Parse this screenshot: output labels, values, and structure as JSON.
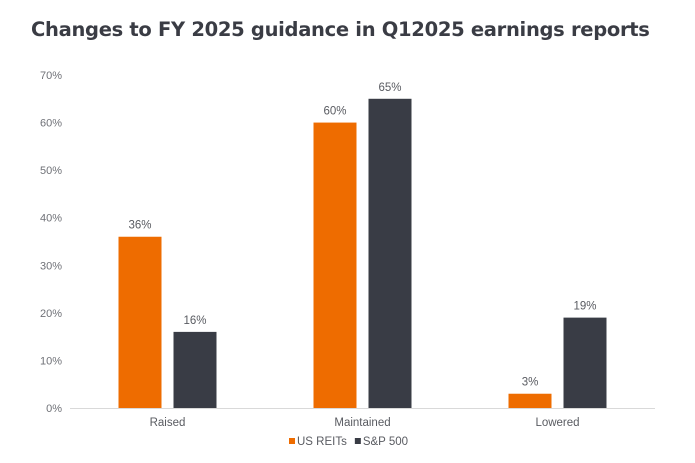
{
  "chart_data": {
    "type": "bar",
    "title": "Changes to FY 2025 guidance in Q12025 earnings reports",
    "xlabel": "",
    "ylabel": "",
    "categories": [
      "Raised",
      "Maintained",
      "Lowered"
    ],
    "series": [
      {
        "name": "US REITs",
        "color": "#ee6c00",
        "values": [
          36,
          60,
          3
        ],
        "labels": [
          "36%",
          "60%",
          "3%"
        ]
      },
      {
        "name": "S&P 500",
        "color": "#393c45",
        "values": [
          16,
          65,
          19
        ],
        "labels": [
          "16%",
          "65%",
          "19%"
        ]
      }
    ],
    "ylim": [
      0,
      70
    ],
    "yticks": [
      0,
      10,
      20,
      30,
      40,
      50,
      60,
      70
    ],
    "ytick_labels": [
      "0%",
      "10%",
      "20%",
      "30%",
      "40%",
      "50%",
      "60%",
      "70%"
    ],
    "grid": false,
    "legend_position": "bottom-center"
  }
}
